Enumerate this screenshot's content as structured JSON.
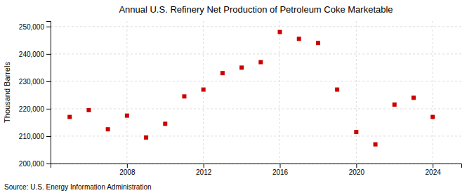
{
  "chart_data": {
    "type": "scatter",
    "title": "Annual U.S. Refinery Net Production of Petroleum Coke Marketable",
    "ylabel": "Thousand Barrels",
    "source": "Source: U.S. Energy Information Administration",
    "x": [
      2005,
      2006,
      2007,
      2008,
      2009,
      2010,
      2011,
      2012,
      2013,
      2014,
      2015,
      2016,
      2017,
      2018,
      2019,
      2020,
      2021,
      2022,
      2023,
      2024
    ],
    "values": [
      217000,
      219500,
      212500,
      217500,
      209500,
      214500,
      224500,
      227000,
      233000,
      235000,
      237000,
      248000,
      245500,
      244000,
      227000,
      211500,
      207000,
      221500,
      224000,
      217000
    ],
    "xlim": [
      2004,
      2025.5
    ],
    "xticks": [
      2008,
      2012,
      2016,
      2020,
      2024
    ],
    "ylim": [
      200000,
      252000
    ],
    "yticks": [
      {
        "value": 200000,
        "label": "200,000"
      },
      {
        "value": 210000,
        "label": "210,000"
      },
      {
        "value": 220000,
        "label": "220,000"
      },
      {
        "value": 230000,
        "label": "230,000"
      },
      {
        "value": 240000,
        "label": "240,000"
      },
      {
        "value": 250000,
        "label": "250,000"
      }
    ],
    "color": "#cc0000",
    "marker": "square",
    "grid": true
  }
}
